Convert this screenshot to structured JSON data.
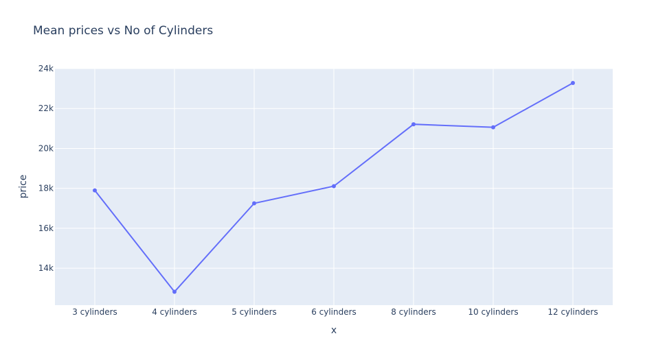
{
  "chart_data": {
    "type": "line",
    "title": "Mean prices vs No of Cylinders",
    "xlabel": "x",
    "ylabel": "price",
    "categories": [
      "3 cylinders",
      "4 cylinders",
      "5 cylinders",
      "6 cylinders",
      "8 cylinders",
      "10 cylinders",
      "12 cylinders"
    ],
    "series": [
      {
        "values": [
          17900,
          12820,
          17250,
          18110,
          21210,
          21060,
          23280
        ]
      }
    ],
    "ylim": [
      12150,
      24000
    ],
    "yticks": [
      14000,
      16000,
      18000,
      20000,
      22000,
      24000
    ],
    "ytick_labels": [
      "14k",
      "16k",
      "18k",
      "20k",
      "22k",
      "24k"
    ],
    "markers": true,
    "grid": true,
    "colors": {
      "line": "#636efa",
      "plot_bg": "#e5ecf6",
      "grid": "#ffffff",
      "text": "#2a3f5f"
    }
  }
}
